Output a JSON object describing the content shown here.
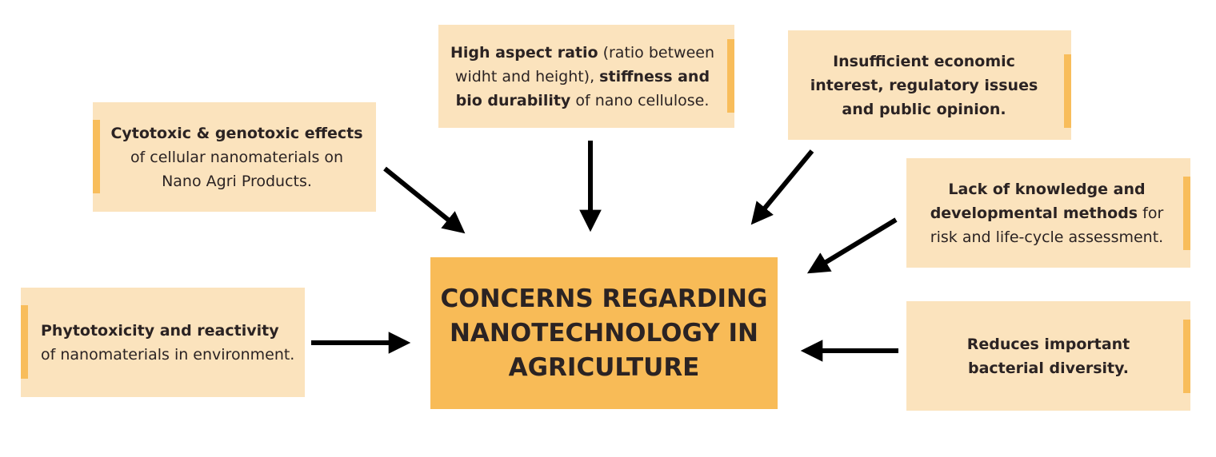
{
  "center": {
    "lines": [
      "CONCERNS REGARDING",
      "NANOTECHNOLOGY IN",
      "AGRICULTURE"
    ]
  },
  "boxes": {
    "cytotoxic": {
      "bold": "Cytotoxic & genotoxic effects",
      "text": "of cellular nanomaterials on Nano Agri Products."
    },
    "aspect": {
      "bold1": "High aspect ratio",
      "text1": " (ratio between widht and height), ",
      "bold2": "stiffness and bio durability",
      "text2": " of nano cellulose."
    },
    "economic": {
      "bold": "Insufficient economic interest, regulatory issues and public opinion."
    },
    "knowledge": {
      "bold": "Lack of knowledge and developmental methods",
      "text": " for risk and life-cycle assessment."
    },
    "phytotoxicity": {
      "bold": "Phytotoxicity and reactivity",
      "text": "of nanomaterials in environment."
    },
    "bacterial": {
      "bold": "Reduces important bacterial diversity."
    }
  },
  "colors": {
    "box": "#fbe3bd",
    "accent": "#f8bd5b",
    "center": "#f8bb57",
    "arrow": "#000000"
  }
}
